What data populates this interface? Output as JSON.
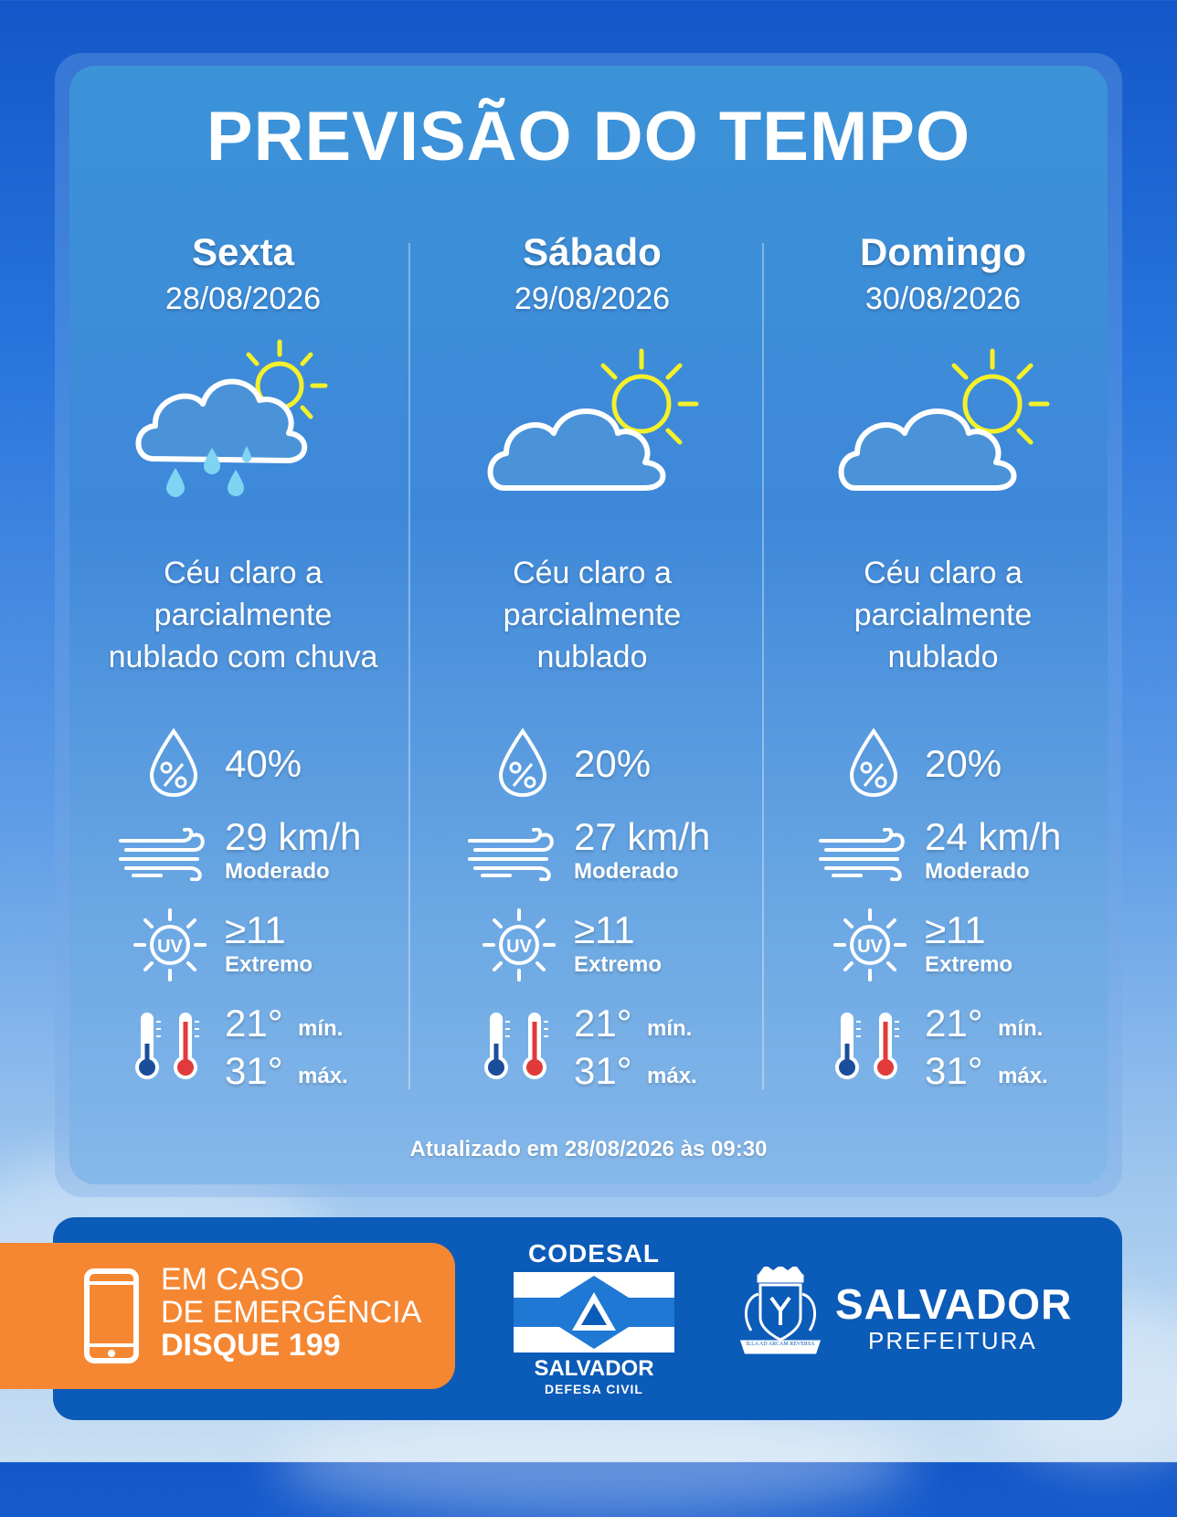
{
  "title": "PREVISÃO DO TEMPO",
  "days": [
    {
      "name": "Sexta",
      "date": "28/08/2026",
      "icon": "rain-cloud-sun-icon",
      "description": [
        "Céu claro a",
        "parcialmente",
        "nublado com chuva"
      ],
      "rain_probability": "40%",
      "wind_speed": "29 km/h",
      "wind_level": "Moderado",
      "uv_index": "≥11",
      "uv_level": "Extremo",
      "temp_min": "21°",
      "temp_min_label": "mín.",
      "temp_max": "31°",
      "temp_max_label": "máx."
    },
    {
      "name": "Sábado",
      "date": "29/08/2026",
      "icon": "cloud-sun-icon",
      "description": [
        "Céu claro a",
        "parcialmente",
        "nublado"
      ],
      "rain_probability": "20%",
      "wind_speed": "27 km/h",
      "wind_level": "Moderado",
      "uv_index": "≥11",
      "uv_level": "Extremo",
      "temp_min": "21°",
      "temp_min_label": "mín.",
      "temp_max": "31°",
      "temp_max_label": "máx."
    },
    {
      "name": "Domingo",
      "date": "30/08/2026",
      "icon": "cloud-sun-icon",
      "description": [
        "Céu claro a",
        "parcialmente",
        "nublado"
      ],
      "rain_probability": "20%",
      "wind_speed": "24 km/h",
      "wind_level": "Moderado",
      "uv_index": "≥11",
      "uv_level": "Extremo",
      "temp_min": "21°",
      "temp_min_label": "mín.",
      "temp_max": "31°",
      "temp_max_label": "máx."
    }
  ],
  "updated": "Atualizado em 28/08/2026 às 09:30",
  "emergency": {
    "line1": "EM CASO",
    "line2": "DE EMERGÊNCIA",
    "line3": "DISQUE 199",
    "icon": "phone-icon"
  },
  "codesal": {
    "top": "CODESAL",
    "city": "SALVADOR",
    "sub": "DEFESA CIVIL"
  },
  "salvador": {
    "name": "SALVADOR",
    "sub": "PREFEITURA",
    "seal_motto": "ILLA AD ARCAM REVERSA"
  },
  "colors": {
    "sun": "#f4f02a",
    "rain_drop": "#7fd4f4",
    "thermo_cold": "#1b4e9a",
    "thermo_hot": "#e23a3a",
    "emergency": "#f58732",
    "footer": "#0b5bb8"
  }
}
